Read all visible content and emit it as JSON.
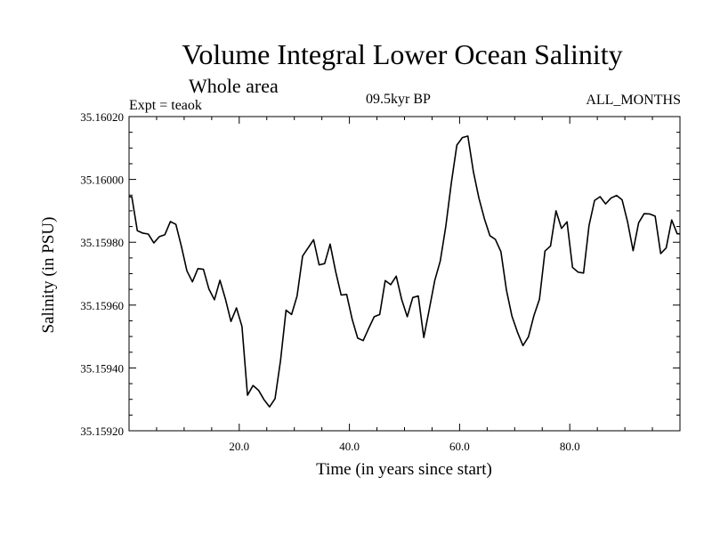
{
  "chart_data": {
    "type": "line",
    "title": "Volume Integral Lower Ocean Salinity",
    "subtitle": "Whole area",
    "expt_label": "Expt = teaok",
    "period_label": "09.5kyr BP",
    "months_label": "ALL_MONTHS",
    "xlabel": "Time (in years since start)",
    "ylabel": "Salinity (in PSU)",
    "xlim": [
      0,
      100
    ],
    "ylim": [
      35.1592,
      35.1602
    ],
    "x_ticks": [
      20,
      40,
      60,
      80
    ],
    "x_tick_labels": [
      "20.0",
      "40.0",
      "60.0",
      "80.0"
    ],
    "y_ticks": [
      35.1592,
      35.1594,
      35.1596,
      35.1598,
      35.16,
      35.1602
    ],
    "y_tick_labels": [
      "35.15920",
      "35.15940",
      "35.15960",
      "35.15980",
      "35.16000",
      "35.16020"
    ],
    "grid": false,
    "series": [
      {
        "name": "Salinity",
        "x": [
          0.5,
          1.5,
          2.5,
          3.5,
          4.5,
          5.5,
          6.5,
          7.5,
          8.5,
          9.5,
          10.5,
          11.5,
          12.5,
          13.5,
          14.5,
          15.5,
          16.5,
          17.5,
          18.5,
          19.5,
          20.5,
          21.5,
          22.5,
          23.5,
          24.5,
          25.5,
          26.5,
          27.5,
          28.5,
          29.5,
          30.5,
          31.5,
          32.5,
          33.5,
          34.5,
          35.5,
          36.5,
          37.5,
          38.5,
          39.5,
          40.5,
          41.5,
          42.5,
          43.5,
          44.5,
          45.5,
          46.5,
          47.5,
          48.5,
          49.5,
          50.5,
          51.5,
          52.5,
          53.5,
          54.5,
          55.5,
          56.5,
          57.5,
          58.5,
          59.5,
          60.5,
          61.5,
          62.5,
          63.5,
          64.5,
          65.5,
          66.5,
          67.5,
          68.5,
          69.5,
          70.5,
          71.5,
          72.5,
          73.5,
          74.5,
          75.5,
          76.5,
          77.5,
          78.5,
          79.5,
          80.5,
          81.5,
          82.5,
          83.5,
          84.5,
          85.5,
          86.5,
          87.5,
          88.5,
          89.5,
          90.5,
          91.5,
          92.5,
          93.5,
          94.5,
          95.5,
          96.5,
          97.5,
          98.5,
          99.5
        ],
        "values": [
          35.159945,
          35.159837,
          35.159829,
          35.159826,
          35.159798,
          35.159818,
          35.159824,
          35.159866,
          35.159857,
          35.159787,
          35.159709,
          35.159674,
          35.159716,
          35.159714,
          35.159651,
          35.159617,
          35.159679,
          35.159619,
          35.159548,
          35.159591,
          35.159532,
          35.159313,
          35.159344,
          35.159329,
          35.159299,
          35.159276,
          35.159302,
          35.159424,
          35.159584,
          35.15957,
          35.159629,
          35.159756,
          35.159782,
          35.159808,
          35.159728,
          35.159732,
          35.159794,
          35.159707,
          35.159632,
          35.159634,
          35.159555,
          35.159495,
          35.159487,
          35.159526,
          35.159563,
          35.15957,
          35.159678,
          35.159665,
          35.159692,
          35.159617,
          35.159563,
          35.159624,
          35.159629,
          35.159497,
          35.159587,
          35.159679,
          35.159741,
          35.159851,
          35.159989,
          35.160109,
          35.160133,
          35.160138,
          35.160025,
          35.159941,
          35.159875,
          35.159821,
          35.159809,
          35.15977,
          35.159648,
          35.159565,
          35.159514,
          35.159471,
          35.159499,
          35.159567,
          35.159619,
          35.159772,
          35.159788,
          35.1599,
          35.159844,
          35.159865,
          35.15972,
          35.159705,
          35.159702,
          35.159854,
          35.159933,
          35.159945,
          35.159922,
          35.159941,
          35.159949,
          35.159935,
          35.159864,
          35.159773,
          35.159862,
          35.159891,
          35.15989,
          35.159883,
          35.159764,
          35.159782,
          35.159871,
          35.159827
        ]
      }
    ]
  }
}
